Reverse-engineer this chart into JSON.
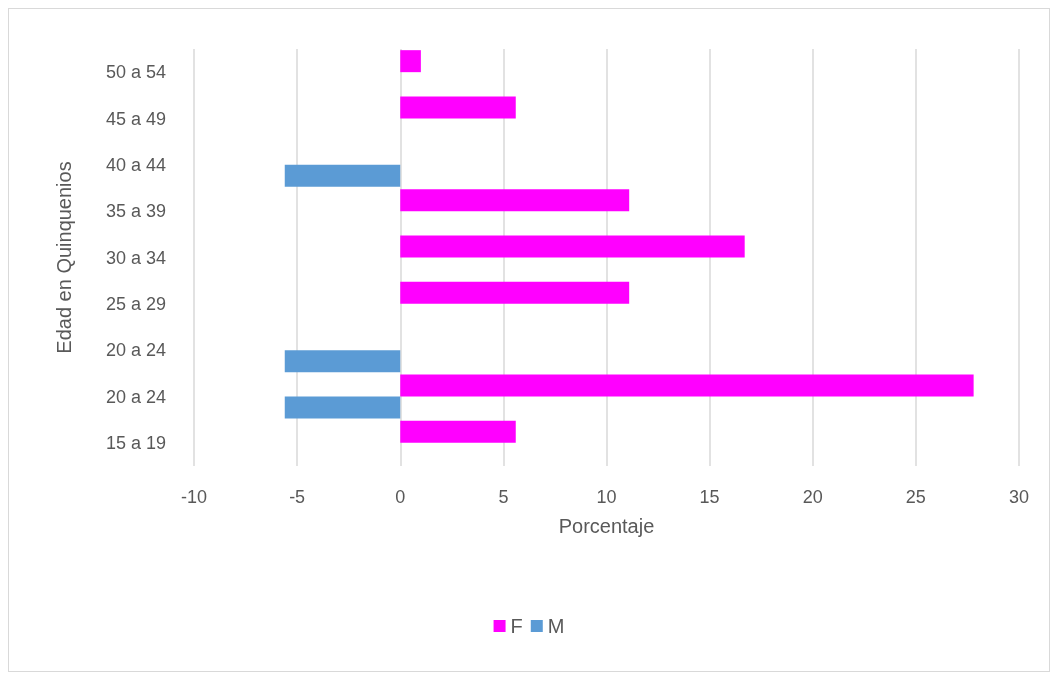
{
  "chart_data": {
    "type": "bar",
    "orientation": "horizontal",
    "ylabel": "Edad en Quinquenios",
    "xlabel": "Porcentaje",
    "categories": [
      "50 a 54",
      "45 a 49",
      "40 a 44",
      "35 a 39",
      "30 a 34",
      "25 a 29",
      "20 a 24",
      "20 a 24",
      "15 a 19"
    ],
    "series": [
      {
        "name": "F",
        "color": "#ff00ff",
        "values": [
          1,
          5.6,
          null,
          11.1,
          16.7,
          11.1,
          null,
          27.8,
          5.6
        ]
      },
      {
        "name": "M",
        "color": "#5b9bd5",
        "values": [
          null,
          null,
          -5.6,
          null,
          null,
          null,
          -5.6,
          -5.6,
          null
        ]
      }
    ],
    "xlim": [
      -10,
      30
    ],
    "xticks": [
      -10,
      -5,
      0,
      5,
      10,
      15,
      20,
      25,
      30
    ],
    "grid": "x",
    "legend": "bottom"
  }
}
